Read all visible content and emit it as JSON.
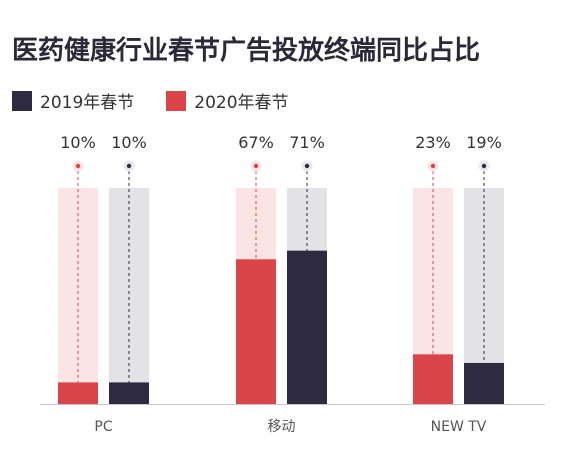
{
  "chart_data": {
    "type": "bar",
    "title": "医药健康行业春节广告投放终端同比占比",
    "categories": [
      "PC",
      "移动",
      "NEW TV"
    ],
    "series": [
      {
        "name": "2020年春节",
        "values": [
          10,
          67,
          23
        ],
        "labels": [
          "10%",
          "67%",
          "23%"
        ],
        "color": "#d9454a",
        "track_color": "#fbe4e4"
      },
      {
        "name": "2019年春节",
        "values": [
          10,
          71,
          19
        ],
        "labels": [
          "10%",
          "71%",
          "19%"
        ],
        "color": "#2e2b40",
        "track_color": "#e3e2e6"
      }
    ],
    "ylim": [
      0,
      100
    ],
    "legend_order": [
      "2019年春节",
      "2020年春节"
    ],
    "legend_position": "top-left"
  }
}
